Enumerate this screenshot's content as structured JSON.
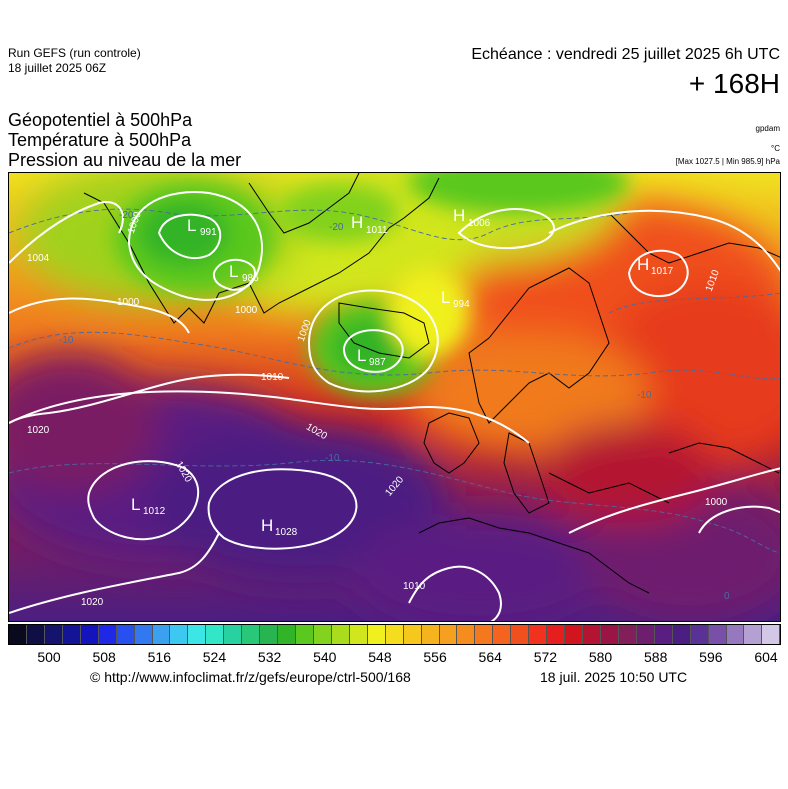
{
  "header": {
    "run_title": "Run GEFS (run controle)",
    "run_date": "18 juillet 2025 06Z",
    "echeance": "Echéance : vendredi 25 juillet 2025 6h UTC",
    "lead": "+ 168H"
  },
  "products": [
    "Géopotentiel à 500hPa",
    "Température à 500hPa",
    "Pression au niveau de la mer"
  ],
  "units": {
    "geopotential": "gpdam",
    "temperature": "°C",
    "pressure": "[Max 1027.5 | Min 985.9] hPa"
  },
  "map": {
    "systems": [
      {
        "type": "L",
        "value": "991"
      },
      {
        "type": "L",
        "value": "986"
      },
      {
        "type": "H",
        "value": "1011"
      },
      {
        "type": "H",
        "value": "1006"
      },
      {
        "type": "L",
        "value": "994"
      },
      {
        "type": "H",
        "value": "1017"
      },
      {
        "type": "L",
        "value": "987"
      },
      {
        "type": "L",
        "value": "1012"
      },
      {
        "type": "H",
        "value": "1028"
      }
    ],
    "isobar_labels": [
      "1004",
      "1000",
      "1000",
      "1000",
      "1000",
      "1010",
      "1020",
      "1020",
      "1020",
      "1020",
      "1010",
      "1010",
      "1000",
      "1020"
    ],
    "isotherm_labels": [
      "-20",
      "-20",
      "-10",
      "-10",
      "-10",
      "0"
    ]
  },
  "legend": {
    "ticks": [
      "500",
      "508",
      "516",
      "524",
      "532",
      "540",
      "548",
      "556",
      "564",
      "572",
      "580",
      "588",
      "596",
      "604"
    ],
    "colors": [
      "#0a0a1e",
      "#0f0f46",
      "#14146e",
      "#141496",
      "#1414be",
      "#1e28e6",
      "#2850f0",
      "#3278f0",
      "#3ca0f0",
      "#3cc8f0",
      "#3ce6e6",
      "#32e6c8",
      "#28d2a0",
      "#28c878",
      "#28b450",
      "#32b428",
      "#5ac81e",
      "#82d21e",
      "#aadc1e",
      "#d2e61e",
      "#f0f01e",
      "#f5dc1e",
      "#f5c81e",
      "#f5b41e",
      "#f5a01e",
      "#f58c1e",
      "#f5781e",
      "#f5641e",
      "#f0501e",
      "#f0321e",
      "#e61e1e",
      "#d2141e",
      "#b41432",
      "#9b1446",
      "#821e5a",
      "#6e1e6e",
      "#5a1e82",
      "#4b1e82",
      "#5a3296",
      "#7850aa",
      "#9678be",
      "#b4a0d2",
      "#d2c8e6"
    ],
    "credit": "© http://www.infoclimat.fr/z/gefs/europe/ctrl-500/168",
    "generated": "18 juil. 2025 10:50 UTC"
  }
}
